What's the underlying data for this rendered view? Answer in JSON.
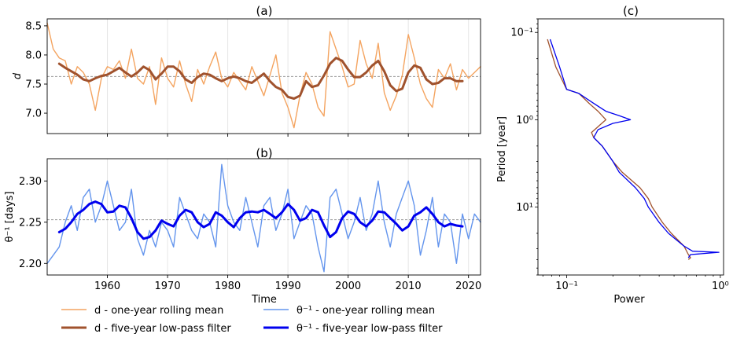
{
  "chart_data": [
    {
      "panel": "(a)",
      "type": "line",
      "title": "(a)",
      "ylabel": "d",
      "xlim": [
        1950,
        2022
      ],
      "ylim": [
        6.65,
        8.62
      ],
      "yticks": [
        7.0,
        7.5,
        8.0,
        8.5
      ],
      "ytick_labels": [
        "7.0",
        "7.5",
        "8.0",
        "8.5"
      ],
      "xticks": [
        1960,
        1970,
        1980,
        1990,
        2000,
        2010,
        2020
      ],
      "reference_line": 7.63,
      "grid": "vertical",
      "series": [
        {
          "name": "d - one-year rolling mean",
          "color": "#f4a460",
          "x": [
            1950,
            1951,
            1952,
            1953,
            1954,
            1955,
            1956,
            1957,
            1958,
            1959,
            1960,
            1961,
            1962,
            1963,
            1964,
            1965,
            1966,
            1967,
            1968,
            1969,
            1970,
            1971,
            1972,
            1973,
            1974,
            1975,
            1976,
            1977,
            1978,
            1979,
            1980,
            1981,
            1982,
            1983,
            1984,
            1985,
            1986,
            1987,
            1988,
            1989,
            1990,
            1991,
            1992,
            1993,
            1994,
            1995,
            1996,
            1997,
            1998,
            1999,
            2000,
            2001,
            2002,
            2003,
            2004,
            2005,
            2006,
            2007,
            2008,
            2009,
            2010,
            2011,
            2012,
            2013,
            2014,
            2015,
            2016,
            2017,
            2018,
            2019,
            2020,
            2021,
            2022
          ],
          "values": [
            8.55,
            8.1,
            7.95,
            7.9,
            7.5,
            7.8,
            7.7,
            7.5,
            7.05,
            7.6,
            7.8,
            7.75,
            7.9,
            7.6,
            8.1,
            7.6,
            7.5,
            7.8,
            7.15,
            7.95,
            7.6,
            7.45,
            7.9,
            7.5,
            7.2,
            7.75,
            7.5,
            7.8,
            8.05,
            7.6,
            7.45,
            7.7,
            7.55,
            7.4,
            7.8,
            7.55,
            7.3,
            7.65,
            8.0,
            7.35,
            7.1,
            6.75,
            7.3,
            7.7,
            7.5,
            7.1,
            6.95,
            8.4,
            8.1,
            7.8,
            7.45,
            7.5,
            8.25,
            7.85,
            7.6,
            8.2,
            7.35,
            7.05,
            7.3,
            7.65,
            8.35,
            7.95,
            7.5,
            7.25,
            7.1,
            7.75,
            7.6,
            7.85,
            7.4,
            7.75,
            7.6,
            7.7,
            7.8
          ]
        },
        {
          "name": "d - five-year low-pass filter",
          "color": "#a0522d",
          "x": [
            1952,
            1953,
            1954,
            1955,
            1956,
            1957,
            1958,
            1959,
            1960,
            1961,
            1962,
            1963,
            1964,
            1965,
            1966,
            1967,
            1968,
            1969,
            1970,
            1971,
            1972,
            1973,
            1974,
            1975,
            1976,
            1977,
            1978,
            1979,
            1980,
            1981,
            1982,
            1983,
            1984,
            1985,
            1986,
            1987,
            1988,
            1989,
            1990,
            1991,
            1992,
            1993,
            1994,
            1995,
            1996,
            1997,
            1998,
            1999,
            2000,
            2001,
            2002,
            2003,
            2004,
            2005,
            2006,
            2007,
            2008,
            2009,
            2010,
            2011,
            2012,
            2013,
            2014,
            2015,
            2016,
            2017,
            2018,
            2019
          ],
          "values": [
            7.85,
            7.78,
            7.72,
            7.66,
            7.58,
            7.55,
            7.6,
            7.64,
            7.66,
            7.72,
            7.78,
            7.7,
            7.63,
            7.7,
            7.8,
            7.74,
            7.58,
            7.68,
            7.8,
            7.8,
            7.72,
            7.58,
            7.52,
            7.62,
            7.68,
            7.66,
            7.6,
            7.55,
            7.6,
            7.63,
            7.6,
            7.55,
            7.52,
            7.6,
            7.68,
            7.55,
            7.45,
            7.4,
            7.28,
            7.25,
            7.3,
            7.55,
            7.45,
            7.48,
            7.65,
            7.85,
            7.95,
            7.9,
            7.75,
            7.62,
            7.62,
            7.7,
            7.82,
            7.9,
            7.72,
            7.48,
            7.38,
            7.42,
            7.7,
            7.82,
            7.78,
            7.58,
            7.5,
            7.52,
            7.6,
            7.6,
            7.55,
            7.55
          ]
        }
      ]
    },
    {
      "panel": "(b)",
      "type": "line",
      "title": "(b)",
      "xlabel": "Time",
      "ylabel": "θ⁻¹ [days]",
      "xlim": [
        1950,
        2022
      ],
      "ylim": [
        2.186,
        2.327
      ],
      "yticks": [
        2.2,
        2.25,
        2.3
      ],
      "ytick_labels": [
        "2.20",
        "2.25",
        "2.30"
      ],
      "xticks": [
        1960,
        1970,
        1980,
        1990,
        2000,
        2010,
        2020
      ],
      "xtick_labels": [
        "1960",
        "1970",
        "1980",
        "1990",
        "2000",
        "2010",
        "2020"
      ],
      "reference_line": 2.253,
      "grid": "vertical",
      "series": [
        {
          "name": "θ⁻¹ - one-year rolling mean",
          "color": "#6495ed",
          "x": [
            1950,
            1951,
            1952,
            1953,
            1954,
            1955,
            1956,
            1957,
            1958,
            1959,
            1960,
            1961,
            1962,
            1963,
            1964,
            1965,
            1966,
            1967,
            1968,
            1969,
            1970,
            1971,
            1972,
            1973,
            1974,
            1975,
            1976,
            1977,
            1978,
            1979,
            1980,
            1981,
            1982,
            1983,
            1984,
            1985,
            1986,
            1987,
            1988,
            1989,
            1990,
            1991,
            1992,
            1993,
            1994,
            1995,
            1996,
            1997,
            1998,
            1999,
            2000,
            2001,
            2002,
            2003,
            2004,
            2005,
            2006,
            2007,
            2008,
            2009,
            2010,
            2011,
            2012,
            2013,
            2014,
            2015,
            2016,
            2017,
            2018,
            2019,
            2020,
            2021,
            2022
          ],
          "values": [
            2.2,
            2.21,
            2.22,
            2.25,
            2.27,
            2.24,
            2.28,
            2.29,
            2.25,
            2.27,
            2.3,
            2.27,
            2.24,
            2.25,
            2.29,
            2.23,
            2.21,
            2.24,
            2.22,
            2.25,
            2.24,
            2.22,
            2.28,
            2.26,
            2.24,
            2.23,
            2.26,
            2.25,
            2.22,
            2.32,
            2.27,
            2.25,
            2.24,
            2.28,
            2.25,
            2.22,
            2.27,
            2.28,
            2.24,
            2.26,
            2.29,
            2.23,
            2.25,
            2.27,
            2.26,
            2.22,
            2.19,
            2.28,
            2.29,
            2.26,
            2.23,
            2.25,
            2.28,
            2.24,
            2.26,
            2.3,
            2.25,
            2.22,
            2.26,
            2.28,
            2.3,
            2.27,
            2.21,
            2.24,
            2.28,
            2.22,
            2.26,
            2.25,
            2.2,
            2.26,
            2.23,
            2.26,
            2.25
          ]
        },
        {
          "name": "θ⁻¹ - five-year low-pass filter",
          "color": "#0000ee",
          "x": [
            1952,
            1953,
            1954,
            1955,
            1956,
            1957,
            1958,
            1959,
            1960,
            1961,
            1962,
            1963,
            1964,
            1965,
            1966,
            1967,
            1968,
            1969,
            1970,
            1971,
            1972,
            1973,
            1974,
            1975,
            1976,
            1977,
            1978,
            1979,
            1980,
            1981,
            1982,
            1983,
            1984,
            1985,
            1986,
            1987,
            1988,
            1989,
            1990,
            1991,
            1992,
            1993,
            1994,
            1995,
            1996,
            1997,
            1998,
            1999,
            2000,
            2001,
            2002,
            2003,
            2004,
            2005,
            2006,
            2007,
            2008,
            2009,
            2010,
            2011,
            2012,
            2013,
            2014,
            2015,
            2016,
            2017,
            2018,
            2019
          ],
          "values": [
            2.238,
            2.242,
            2.25,
            2.26,
            2.265,
            2.272,
            2.275,
            2.272,
            2.262,
            2.263,
            2.27,
            2.268,
            2.255,
            2.238,
            2.23,
            2.232,
            2.24,
            2.252,
            2.248,
            2.245,
            2.258,
            2.265,
            2.262,
            2.25,
            2.244,
            2.248,
            2.262,
            2.258,
            2.25,
            2.244,
            2.255,
            2.262,
            2.263,
            2.262,
            2.265,
            2.26,
            2.255,
            2.262,
            2.272,
            2.265,
            2.252,
            2.255,
            2.265,
            2.262,
            2.246,
            2.232,
            2.238,
            2.255,
            2.263,
            2.26,
            2.25,
            2.245,
            2.252,
            2.263,
            2.262,
            2.255,
            2.248,
            2.24,
            2.245,
            2.258,
            2.262,
            2.268,
            2.26,
            2.25,
            2.245,
            2.248,
            2.246,
            2.245
          ]
        }
      ]
    },
    {
      "panel": "(c)",
      "type": "line",
      "title": "(c)",
      "xlabel": "Power",
      "ylabel": "Period [year]",
      "xscale": "log",
      "yscale": "log",
      "yaxis_inverted": true,
      "xlim": [
        0.065,
        1.05
      ],
      "ylim": [
        0.07,
        60
      ],
      "xticks": [
        0.1,
        1
      ],
      "xtick_labels": [
        "10⁻¹",
        "10⁰"
      ],
      "yticks": [
        0.1,
        1,
        10
      ],
      "ytick_labels": [
        "10⁻¹",
        "10⁰",
        "10¹"
      ],
      "series": [
        {
          "name": "d",
          "color": "#a0522d",
          "period": [
            0.12,
            0.25,
            0.45,
            0.5,
            0.65,
            0.8,
            1.0,
            1.2,
            1.4,
            1.6,
            2.0,
            3.0,
            4.0,
            6.0,
            8.0,
            10.0,
            15.0,
            20.0,
            28.0,
            35.0,
            38.0,
            40.0
          ],
          "power": [
            0.075,
            0.085,
            0.1,
            0.12,
            0.14,
            0.16,
            0.18,
            0.16,
            0.145,
            0.15,
            0.17,
            0.2,
            0.23,
            0.3,
            0.34,
            0.36,
            0.42,
            0.48,
            0.58,
            0.62,
            0.64,
            0.62
          ]
        },
        {
          "name": "θ⁻¹",
          "color": "#0000ee",
          "period": [
            0.12,
            0.25,
            0.45,
            0.5,
            0.65,
            0.8,
            0.9,
            1.0,
            1.1,
            1.3,
            1.6,
            2.0,
            3.0,
            4.0,
            6.0,
            8.0,
            10.0,
            15.0,
            20.0,
            28.0,
            32.0,
            33.0,
            35.0,
            38.0
          ],
          "power": [
            0.078,
            0.09,
            0.1,
            0.12,
            0.15,
            0.18,
            0.22,
            0.26,
            0.2,
            0.16,
            0.15,
            0.17,
            0.2,
            0.22,
            0.28,
            0.32,
            0.34,
            0.4,
            0.46,
            0.58,
            0.66,
            0.98,
            0.64,
            0.62
          ]
        }
      ]
    }
  ],
  "legend": [
    {
      "label": "d - one-year rolling mean",
      "color": "#f4a460",
      "width": 1.5
    },
    {
      "label": "d - five-year low-pass filter",
      "color": "#a0522d",
      "width": 3
    },
    {
      "label": "θ⁻¹ - one-year rolling mean",
      "color": "#6495ed",
      "width": 1.5
    },
    {
      "label": "θ⁻¹ - five-year low-pass filter",
      "color": "#0000ee",
      "width": 3
    }
  ]
}
